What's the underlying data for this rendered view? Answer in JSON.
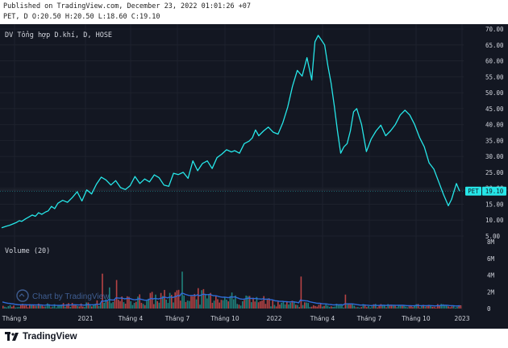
{
  "header": {
    "published_line": "Published on TradingView.com, December 23, 2022 01:01:26 +07",
    "symbol": "PET",
    "ohlc": [
      "D",
      "O:20.50",
      "H:20.50",
      "L:18.60",
      "C:19.10"
    ]
  },
  "legend": {
    "main": "DV Tổng hợp D.khí, D, HOSE",
    "volume": "Volume (20)"
  },
  "price_badge": {
    "symbol": "PET",
    "value": "19.10"
  },
  "watermark": "Chart by TradingView",
  "footer_brand": "TradingView",
  "colors": {
    "background": "#131722",
    "price_line": "#26e6e8",
    "volume_up": "#26a69a",
    "volume_down": "#ef5350",
    "volume_ma": "#2f6cd8",
    "axis_text": "#d1d4dc",
    "grid": "#1e222d"
  },
  "chart_data": {
    "type": "line",
    "x_tick_labels": [
      "Tháng 9",
      "2021",
      "Tháng 4",
      "Tháng 7",
      "Tháng 10",
      "2022",
      "Tháng 4",
      "Tháng 7",
      "Tháng 10",
      "2023"
    ],
    "price_axis": {
      "ticks": [
        "70.00",
        "65.00",
        "60.00",
        "55.00",
        "50.00",
        "45.00",
        "40.00",
        "35.00",
        "30.00",
        "25.00",
        "20.00",
        "15.00",
        "10.00",
        "5.00"
      ],
      "ylim": [
        5,
        70
      ]
    },
    "volume_axis": {
      "ticks": [
        "8M",
        "6M",
        "4M",
        "2M",
        "0"
      ],
      "ylim": [
        0,
        8000000
      ]
    },
    "series": [
      {
        "name": "PET",
        "t": [
          0,
          6,
          10,
          14,
          18,
          22,
          25,
          30,
          34,
          38,
          42,
          46,
          50,
          55,
          58,
          62,
          66,
          70,
          76,
          82,
          88,
          94,
          100,
          106,
          112,
          118,
          124,
          130,
          136,
          142,
          148,
          154,
          160,
          166,
          172,
          178,
          184,
          190,
          196,
          202,
          208,
          214,
          220,
          226,
          232,
          238,
          244,
          250,
          256,
          262,
          268,
          274,
          280,
          286,
          290,
          296,
          302,
          308,
          312,
          316,
          320,
          326,
          332,
          338,
          344,
          350,
          356,
          362,
          368,
          374,
          380,
          386,
          390,
          394,
          398,
          402,
          406,
          410,
          414,
          418,
          422,
          426,
          430,
          434,
          438,
          442,
          448,
          454,
          460,
          466,
          472,
          478,
          484,
          490,
          496,
          502,
          508,
          514,
          520,
          526,
          532,
          538,
          544,
          550,
          556,
          560,
          566,
          570
        ],
        "close": [
          7.6,
          8.1,
          8.4,
          8.8,
          9.2,
          9.8,
          9.6,
          10.4,
          11.0,
          11.6,
          11.2,
          12.3,
          11.8,
          12.6,
          12.9,
          14.3,
          13.6,
          15.3,
          16.2,
          15.6,
          17.1,
          18.9,
          16.0,
          19.5,
          18.2,
          21.3,
          23.5,
          22.6,
          21.0,
          22.4,
          20.2,
          19.6,
          20.8,
          23.7,
          21.5,
          22.9,
          22.0,
          24.2,
          23.3,
          21.0,
          20.6,
          24.7,
          24.3,
          25.0,
          23.1,
          28.6,
          25.5,
          27.8,
          28.6,
          26.2,
          29.6,
          30.7,
          32.1,
          31.4,
          31.8,
          31.0,
          34.0,
          34.8,
          35.8,
          38.3,
          36.5,
          38.0,
          39.2,
          37.6,
          37.0,
          40.6,
          45.5,
          52.0,
          57.0,
          55.2,
          61.0,
          54.0,
          66.0,
          68.0,
          66.5,
          65.0,
          58.5,
          53.0,
          46.0,
          38.0,
          31.0,
          33.0,
          34.0,
          38.0,
          44.0,
          45.0,
          40.0,
          31.5,
          35.5,
          38.0,
          39.8,
          36.5,
          38.0,
          40.0,
          43.0,
          44.5,
          43.0,
          40.0,
          36.0,
          33.0,
          28.0,
          26.0,
          22.0,
          18.0,
          14.5,
          16.5,
          21.5,
          19.1
        ]
      }
    ]
  }
}
